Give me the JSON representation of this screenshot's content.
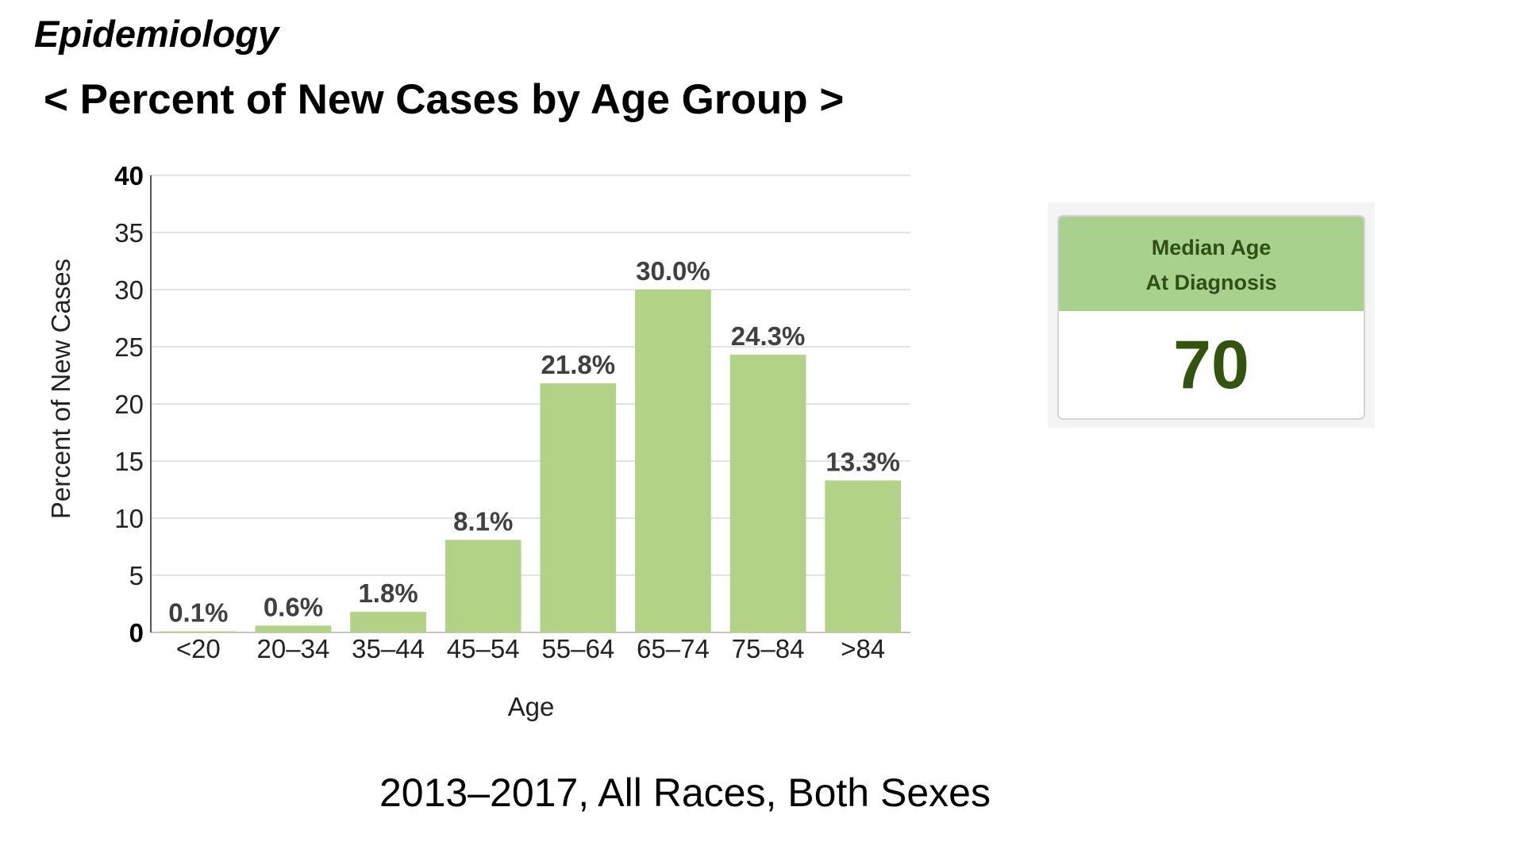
{
  "page": {
    "section_title": "Epidemiology",
    "heading": "< Percent of New Cases by Age Group >",
    "footnote": "2013–2017, All Races, Both Sexes"
  },
  "median_card": {
    "label_line1": "Median Age",
    "label_line2": "At Diagnosis",
    "value": "70",
    "header_color": "#a9d18e",
    "value_color": "#33540f"
  },
  "chart_data": {
    "type": "bar",
    "categories": [
      "<20",
      "20–34",
      "35–44",
      "45–54",
      "55–64",
      "65–74",
      "75–84",
      ">84"
    ],
    "values": [
      0.1,
      0.6,
      1.8,
      8.1,
      21.8,
      30.0,
      24.3,
      13.3
    ],
    "data_labels": [
      "0.1%",
      "0.6%",
      "1.8%",
      "8.1%",
      "21.8%",
      "30.0%",
      "24.3%",
      "13.3%"
    ],
    "xlabel": "Age",
    "ylabel": "Percent of New Cases",
    "ylim": [
      0,
      40
    ],
    "yticks": [
      0,
      5,
      10,
      15,
      20,
      25,
      30,
      35,
      40
    ],
    "grid": true,
    "legend": "none",
    "bar_color": "#b2d386"
  }
}
